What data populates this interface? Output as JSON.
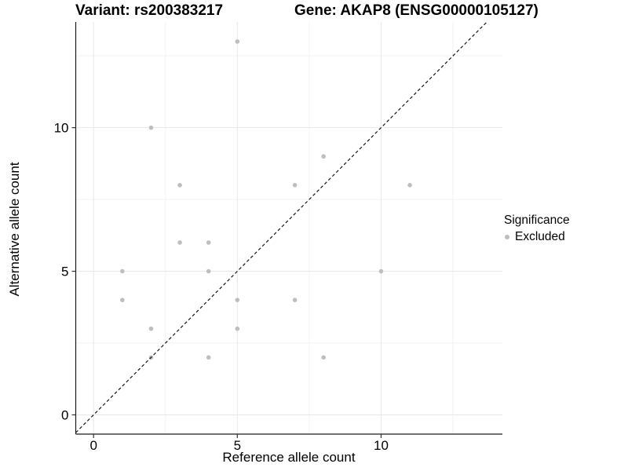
{
  "header": {
    "variant_title": "Variant: rs200383217",
    "gene_title": "Gene: AKAP8 (ENSG00000105127)"
  },
  "chart_data": {
    "type": "scatter",
    "xlabel": "Reference allele count",
    "ylabel": "Alternative allele count",
    "x_ticks": [
      "0",
      "5",
      "10"
    ],
    "y_ticks": [
      "0",
      "5",
      "10"
    ],
    "x_tick_values": [
      0,
      5,
      10
    ],
    "y_tick_values": [
      0,
      5,
      10
    ],
    "minor_tick_values": [
      2.5,
      7.5,
      12.5
    ],
    "xlim": [
      -0.62,
      14.22
    ],
    "ylim": [
      -0.67,
      13.68
    ],
    "grid": true,
    "series": [
      {
        "name": "Excluded",
        "color": "#bebebe",
        "points": [
          [
            1,
            4
          ],
          [
            1,
            5
          ],
          [
            2,
            2
          ],
          [
            2,
            3
          ],
          [
            2,
            10
          ],
          [
            3,
            6
          ],
          [
            3,
            8
          ],
          [
            4,
            2
          ],
          [
            4,
            5
          ],
          [
            4,
            6
          ],
          [
            5,
            3
          ],
          [
            5,
            4
          ],
          [
            5,
            13
          ],
          [
            7,
            4
          ],
          [
            7,
            8
          ],
          [
            8,
            2
          ],
          [
            8,
            9
          ],
          [
            10,
            5
          ],
          [
            11,
            8
          ]
        ]
      }
    ],
    "reference_line": {
      "type": "identity y=x",
      "style": "dashed",
      "color": "#000000"
    },
    "legend": {
      "title": "Significance",
      "position": "right",
      "entries": [
        {
          "label": "Excluded",
          "color": "#bebebe"
        }
      ]
    },
    "colors": {
      "point": "#bebebe",
      "grid_major": "#e8e8e8",
      "grid_minor": "#f2f2f2",
      "axis_line": "#1a1a1a",
      "tick": "#333333",
      "text": "#000000"
    }
  }
}
